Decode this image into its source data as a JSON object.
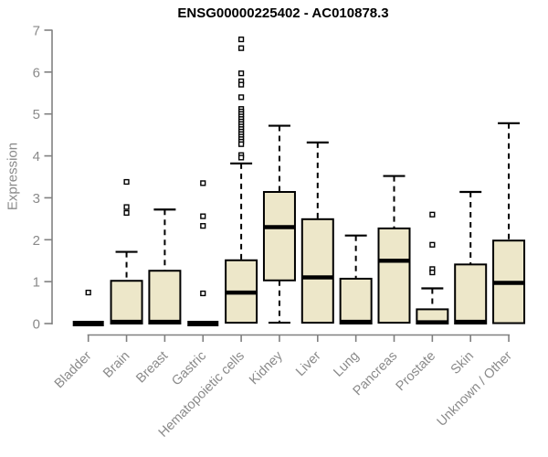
{
  "header": {
    "title": "ENSG00000225402 - AC010878.3"
  },
  "chart_data": {
    "type": "boxplot",
    "title": "ENSG00000225402 - AC010878.3",
    "xlabel": "",
    "ylabel": "Expression",
    "ylim": [
      0,
      7
    ],
    "yticks": [
      0,
      1,
      2,
      3,
      4,
      5,
      6,
      7
    ],
    "grid": false,
    "legend": "none",
    "colors": {
      "box_fill": "#EDE7C9",
      "box_stroke": "#000000",
      "axis": "#808080",
      "labels": "#8A8A8A",
      "title": "#000000",
      "background": "#FFFFFF"
    },
    "categories": [
      "Bladder",
      "Brain",
      "Breast",
      "Gastric",
      "Hematopoietic cells",
      "Kidney",
      "Liver",
      "Lung",
      "Pancreas",
      "Prostate",
      "Skin",
      "Unknown / Other"
    ],
    "series": [
      {
        "category": "Bladder",
        "whisker_low": 0,
        "q1": 0,
        "median": 0,
        "q3": 0,
        "whisker_high": 0,
        "outliers": [
          0.74
        ]
      },
      {
        "category": "Brain",
        "whisker_low": 0,
        "q1": 0,
        "median": 0.04,
        "q3": 1.02,
        "whisker_high": 1.71,
        "outliers": [
          3.38,
          2.78,
          2.64
        ]
      },
      {
        "category": "Breast",
        "whisker_low": 0,
        "q1": 0,
        "median": 0.04,
        "q3": 1.26,
        "whisker_high": 2.72,
        "outliers": []
      },
      {
        "category": "Gastric",
        "whisker_low": 0,
        "q1": 0,
        "median": 0,
        "q3": 0,
        "whisker_high": 0,
        "outliers": [
          3.35,
          2.56,
          2.33,
          0.72
        ]
      },
      {
        "category": "Hematopoietic cells",
        "whisker_low": 0,
        "q1": 0.02,
        "median": 0.74,
        "q3": 1.51,
        "whisker_high": 3.82,
        "outliers": [
          6.78,
          6.57,
          5.97,
          5.78,
          5.7,
          5.4,
          5.12,
          5.06,
          5.0,
          4.94,
          4.88,
          4.82,
          4.76,
          4.7,
          4.64,
          4.58,
          4.52,
          4.46,
          4.4,
          4.34,
          4.28,
          4.02,
          3.96
        ]
      },
      {
        "category": "Kidney",
        "whisker_low": 0.02,
        "q1": 1.03,
        "median": 2.3,
        "q3": 3.14,
        "whisker_high": 4.72,
        "outliers": []
      },
      {
        "category": "Liver",
        "whisker_low": 0.02,
        "q1": 0.02,
        "median": 1.1,
        "q3": 2.49,
        "whisker_high": 4.32,
        "outliers": []
      },
      {
        "category": "Lung",
        "whisker_low": 0,
        "q1": 0,
        "median": 0.04,
        "q3": 1.07,
        "whisker_high": 2.1,
        "outliers": []
      },
      {
        "category": "Pancreas",
        "whisker_low": 0.02,
        "q1": 0.02,
        "median": 1.5,
        "q3": 2.27,
        "whisker_high": 3.52,
        "outliers": []
      },
      {
        "category": "Prostate",
        "whisker_low": 0,
        "q1": 0,
        "median": 0.03,
        "q3": 0.34,
        "whisker_high": 0.84,
        "outliers": [
          2.6,
          1.88,
          1.3,
          1.22
        ]
      },
      {
        "category": "Skin",
        "whisker_low": 0,
        "q1": 0,
        "median": 0.04,
        "q3": 1.41,
        "whisker_high": 3.14,
        "outliers": []
      },
      {
        "category": "Unknown / Other",
        "whisker_low": 0,
        "q1": 0.01,
        "median": 0.97,
        "q3": 1.98,
        "whisker_high": 4.78,
        "outliers": []
      }
    ]
  }
}
